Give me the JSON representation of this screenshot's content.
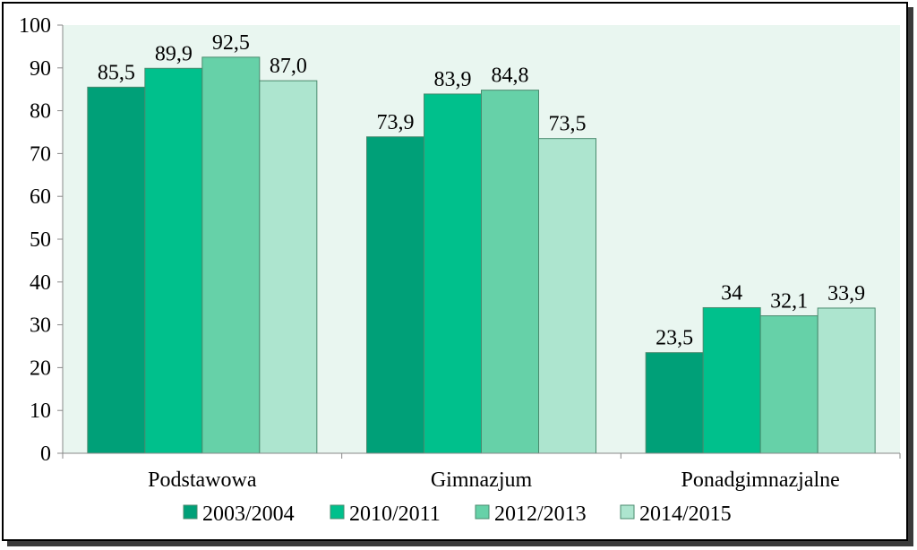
{
  "chart_data": {
    "type": "bar",
    "categories": [
      "Podstawowa",
      "Gimnazjum",
      "Ponadgimnazjalne"
    ],
    "series": [
      {
        "name": "2003/2004",
        "values": [
          85.5,
          73.9,
          23.5
        ],
        "labels": [
          "85,5",
          "73,9",
          "23,5"
        ],
        "color": "#00a078"
      },
      {
        "name": "2010/2011",
        "values": [
          89.9,
          83.9,
          34
        ],
        "labels": [
          "89,9",
          "83,9",
          "34"
        ],
        "color": "#00c08c"
      },
      {
        "name": "2012/2013",
        "values": [
          92.5,
          84.8,
          32.1
        ],
        "labels": [
          "92,5",
          "84,8",
          "32,1"
        ],
        "color": "#66d1a8"
      },
      {
        "name": "2014/2015",
        "values": [
          87.0,
          73.5,
          33.9
        ],
        "labels": [
          "87,0",
          "73,5",
          "33,9"
        ],
        "color": "#ade5cf"
      }
    ],
    "yticks": [
      "0",
      "10",
      "20",
      "30",
      "40",
      "50",
      "60",
      "70",
      "80",
      "90",
      "100"
    ],
    "ylim": [
      0,
      100
    ],
    "grid": false,
    "legend_position": "bottom",
    "plot_background": "#e9f6f0",
    "bar_outline": "#4a8a6e"
  }
}
